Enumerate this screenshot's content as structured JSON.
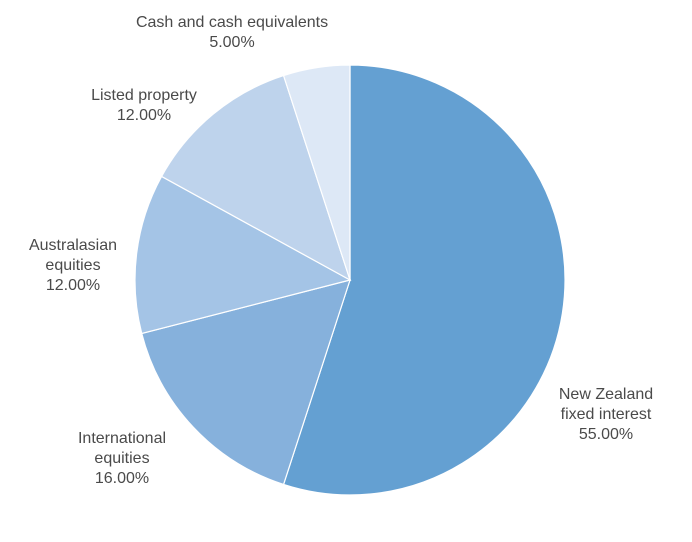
{
  "chart_data": {
    "type": "pie",
    "start_angle_deg": 0,
    "direction": "clockwise",
    "slices": [
      {
        "name": "New Zealand fixed interest",
        "label_lines": [
          "New Zealand",
          "fixed interest"
        ],
        "value": 55.0,
        "value_label": "55.00%",
        "color": "#64a0d2"
      },
      {
        "name": "International equities",
        "label_lines": [
          "International",
          "equities"
        ],
        "value": 16.0,
        "value_label": "16.00%",
        "color": "#86b1dc"
      },
      {
        "name": "Australasian equities",
        "label_lines": [
          "Australasian",
          "equities"
        ],
        "value": 12.0,
        "value_label": "12.00%",
        "color": "#a4c4e6"
      },
      {
        "name": "Listed property",
        "label_lines": [
          "Listed property"
        ],
        "value": 12.0,
        "value_label": "12.00%",
        "color": "#bed3ec"
      },
      {
        "name": "Cash and cash equivalents",
        "label_lines": [
          "Cash and cash equivalents"
        ],
        "value": 5.0,
        "value_label": "5.00%",
        "color": "#dde8f6"
      }
    ]
  }
}
